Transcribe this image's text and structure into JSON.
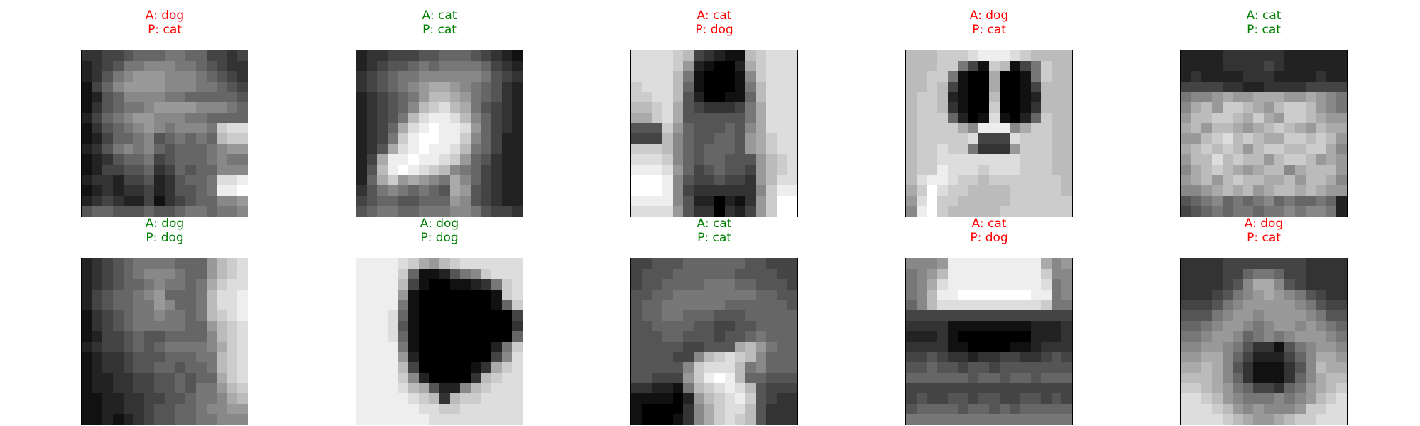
{
  "panels": [
    {
      "actual": "A: dog",
      "predicted": "P: cat",
      "status": "wrong",
      "subject": "dog-photo",
      "grid": [
        "3344566677664434",
        "2345778887765433",
        "2357899988876543",
        "1468999988877654",
        "1256888877666665",
        "1356778999988876",
        "2467899888776666",
        "1356789878887CDD",
        "1246678567676BCC",
        "2357878656667899",
        "1235667456667877",
        "1244556346566888",
        "2332445235667DDE",
        "1232334235567EEF",
        "2343224134566889",
        "5665556556776778"
      ]
    },
    {
      "actual": "A: cat",
      "predicted": "P: cat",
      "status": "right",
      "subject": "cat-photo",
      "grid": [
        "2334445566654321",
        "2345567677776432",
        "3456778888887543",
        "3456789AA9876532",
        "2345679BBA976532",
        "234568BCDBA75432",
        "23457BDEEDB86432",
        "2346ADEFEED96432",
        "2347CEFFEEC86422",
        "235ADEFEEDB76422",
        "24AEEFEEDC965322",
        "25BEFEDCB8764322",
        "26AC9A987A864322",
        "357876765A954322",
        "4566556669854322",
        "5677667778875443"
      ]
    },
    {
      "actual": "A: cat",
      "predicted": "P: dog",
      "status": "wrong",
      "subject": "cat-photo",
      "grid": [
        "DDDDCB43211BCDDD",
        "DDDDC921002ACDDD",
        "DDDDB7100018CDDD",
        "CDDDB6100017BDDD",
        "CCDDB5200116BDDD",
        "BBCDA5433347ADDD",
        "AACDA5555557ADDD",
        "555C96555658ADDD",
        "444B86556659ACDD",
        "CCCB86566659ACDD",
        "DDDC865665559BCD",
        "EEED964565549BCD",
        "FFFE854454439BDD",
        "FFFE843333338CEE",
        "EEEE852202139CFF",
        "DDDD953303249CFF"
      ]
    },
    {
      "actual": "A: dog",
      "predicted": "P: cat",
      "status": "wrong",
      "subject": "dog-photo",
      "grid": [
        "BBBCCCDEEEDCBBBB",
        "BBBCC741CB147CBB",
        "BBCC7100A0017CBB",
        "BBCB4100A0014BBB",
        "BCCB2100B0012BBB",
        "BCCB3100C0013BBB",
        "BCCC6201D1026CBB",
        "BCCCCA8EEE8ACCBB",
        "BCCCCCD444DCCCBB",
        "BCCDCC73339CCCBB",
        "BCCDDDDDDDDCCCBB",
        "BCCEDDDCDDDCCCBB",
        "BDEEDCCBCCCCCCCB",
        "ACFDCCBBBBCCCCCB",
        "9DFCCBBBBBCCCCCC",
        "8EFCBBBBBCCCCCCC"
      ]
    },
    {
      "actual": "A: cat",
      "predicted": "P: cat",
      "status": "right",
      "subject": "cat-photo",
      "grid": [
        "2222333333222222",
        "2222333343222222",
        "2322223332222322",
        "4444332233334444",
        "7889A99AAA99A987",
        "8AB9CCBA9BCCB987",
        "9BBCCBACA9CCBA99",
        "AB9BBA9ABCBA9BAA",
        "99BCDBCBAACCBCB9",
        "ABCBCB9BCCBBCCA8",
        "9BBDBCBB9BCCB9A9",
        "8ABCBA9ABB8ABBB9",
        "9AB9BCBBAAB9BBA8",
        "889ABAB9ABBABA99",
        "5678676786766762",
        "4567677677878872"
      ]
    },
    {
      "actual": "A: dog",
      "predicted": "P: dog",
      "status": "right",
      "subject": "dog-photo",
      "grid": [
        "2345677776669BCD",
        "2345678887669BCD",
        "234566787767ACDD",
        "245667896667BDDE",
        "245667798667BDDE",
        "134567787767BCDE",
        "1345677777669BCD",
        "1244565566668BCD",
        "2344565677778ACD",
        "1233455566677BCD",
        "1233455665667BCD",
        "1223344556566ACD",
        "12233445565779BC",
        "11223344556778AB",
        "1122334556678899",
        "1121234556677888"
      ]
    },
    {
      "actual": "A: dog",
      "predicted": "P: dog",
      "status": "right",
      "subject": "dog-photo",
      "grid": [
        "EEEEDCA9BCDDDDDD",
        "EEEEC6112578CDDD",
        "EEEEB410011237CD",
        "EEEE9100000001CD",
        "EEEE71000000016C",
        "EEED610000000004",
        "EEED510000000003",
        "EEED610000000006",
        "EEEE71000000027C",
        "EEEE92000000048D",
        "EEEEB40000013ACD",
        "EEEEC8200003BCDD",
        "EEEEDBA5228BCDDD",
        "EEEEEDCB3BCCDDDD",
        "EEEEEEDDCCDDDDDD",
        "EEEEEEEDDDDDDDDD"
      ]
    },
    {
      "actual": "A: cat",
      "predicted": "P: cat",
      "status": "right",
      "subject": "cat-photo",
      "grid": [
        "4455566666655444",
        "4555666666555544",
        "4556666777665554",
        "5566777777776655",
        "5667777776666665",
        "5667766655566666",
        "5566665544556666",
        "5556655545567666",
        "5555544555AB9766",
        "5555448BCDCB8666",
        "555558CDDDB78666",
        "554449CEFEB66555",
        "332217BCDEDB5444",
        "1111029BCDEC5433",
        "1000038ACDDB5333",
        "1000138ACDCB5333"
      ]
    },
    {
      "actual": "A: cat",
      "predicted": "P: dog",
      "status": "wrong",
      "subject": "cat-photo",
      "grid": [
        "8889EEEEEEEEEA89",
        "789BEEEEEEEEEC88",
        "78ADEEEEEEEEED78",
        "78BEEFFFFFFFEE78",
        "68BDDDDDDDDDDC77",
        "4444444444444444",
        "3333111111112223",
        "2223100000002223",
        "3333110000112333",
        "4454332334433454",
        "5565545545555555",
        "6666665665665666",
        "4444444444444444",
        "4544554554455454",
        "5666656656566666",
        "7777777777777777"
      ]
    },
    {
      "actual": "A: dog",
      "predicted": "P: cat",
      "status": "wrong",
      "subject": "dog-photo",
      "grid": [
        "3333444444443333",
        "3333446776443333",
        "3333458AA8543333",
        "33345789A9875433",
        "4445789999987544",
        "5557899899998755",
        "6678998789989876",
        "7789986787899987",
        "8899875331578998",
        "99AA864222468AA9",
        "AABA853111358BAA",
        "BBBA863111368ABB",
        "CCBA976443679ABC",
        "DDCB987778789BCD",
        "DDDCB9898889CCDD",
        "DDDDCBA99ABCCDDD"
      ]
    }
  ]
}
